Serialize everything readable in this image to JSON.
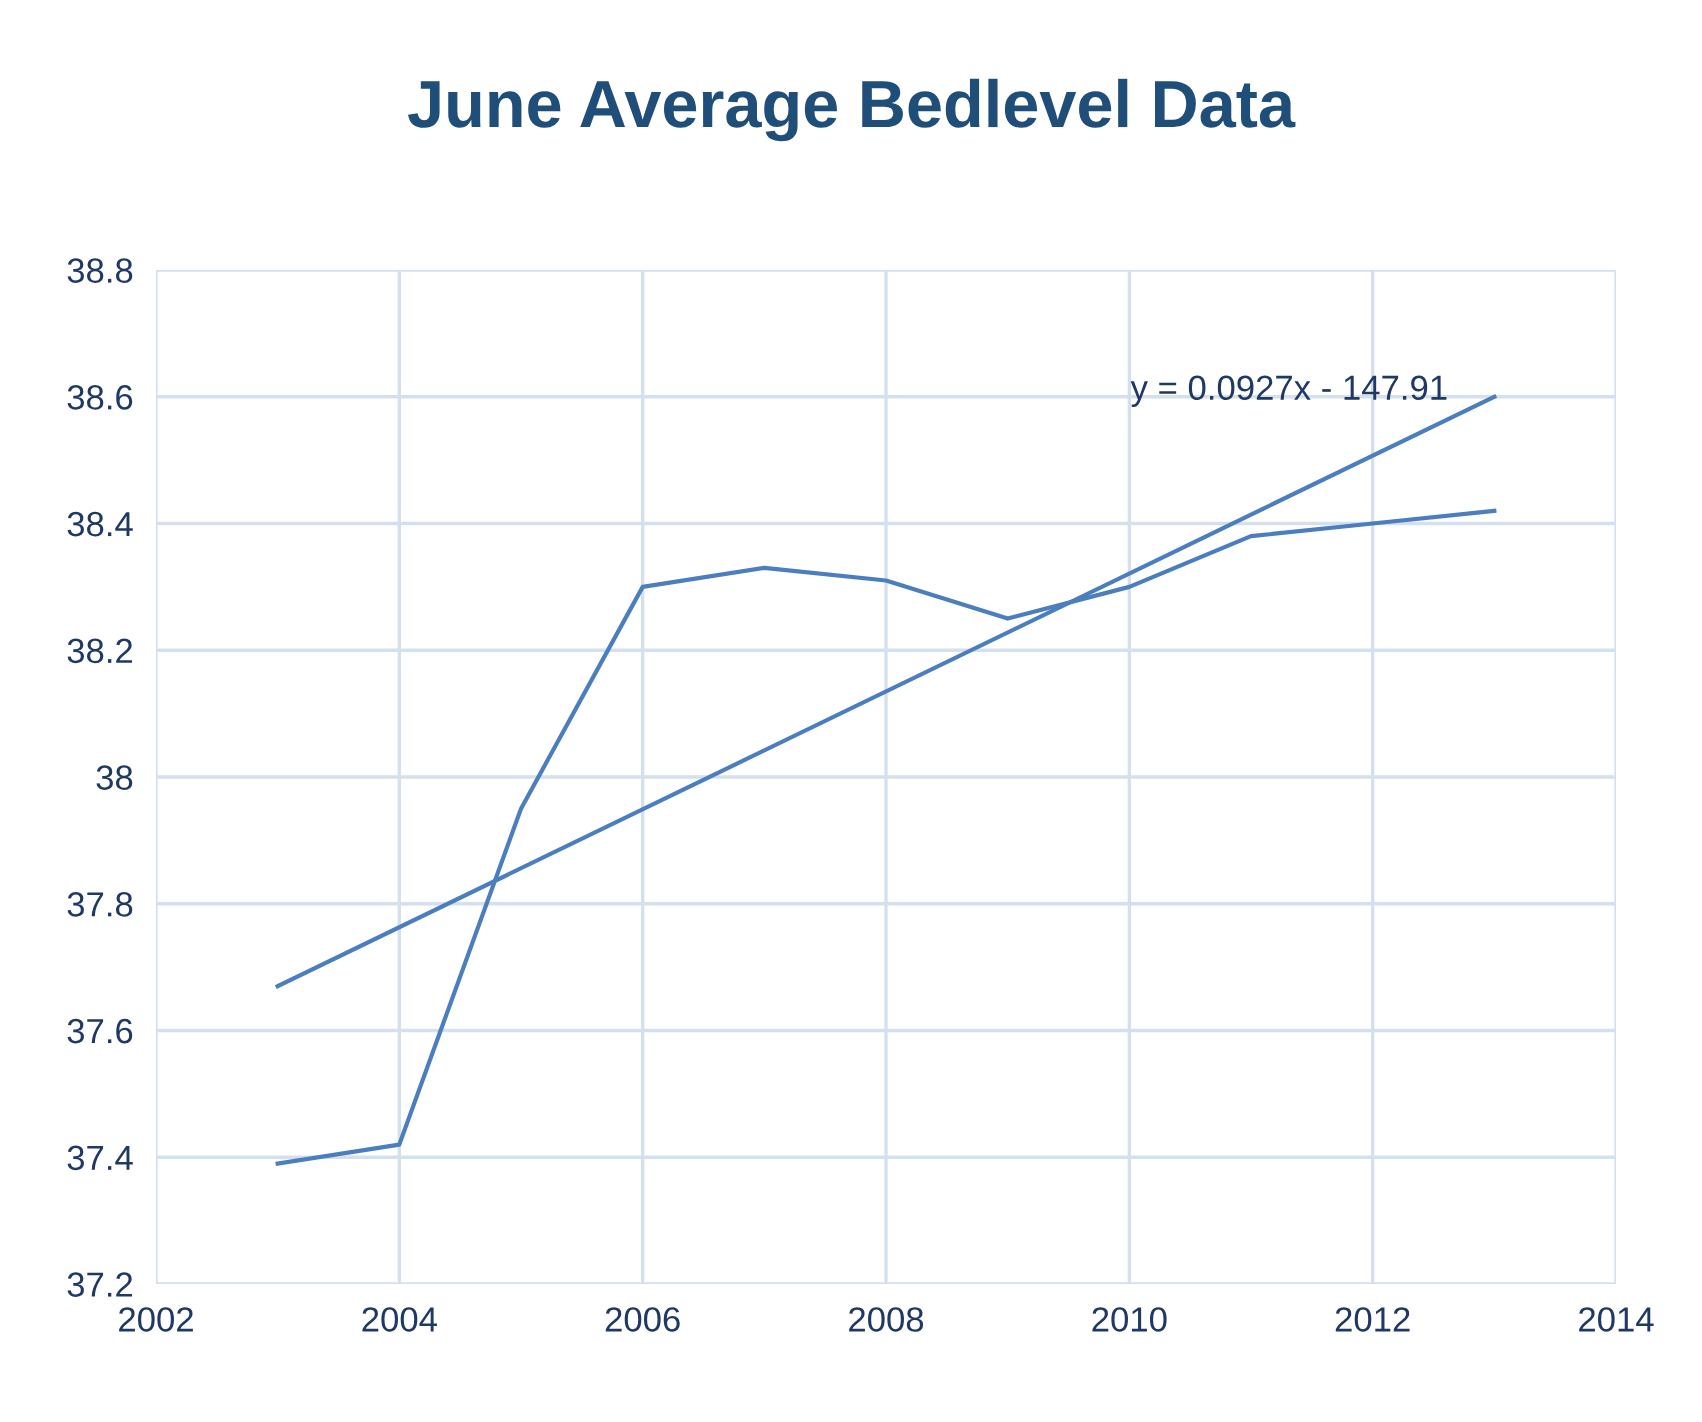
{
  "chart_data": {
    "type": "line",
    "title": "June Average Bedlevel Data",
    "x": [
      2003,
      2004,
      2005,
      2006,
      2007,
      2008,
      2009,
      2010,
      2011,
      2012,
      2013
    ],
    "series": [
      {
        "color": "#4a7ebf",
        "values": [
          37.39,
          37.42,
          37.95,
          38.3,
          38.33,
          38.31,
          38.25,
          38.3,
          38.38,
          38.4,
          38.42
        ]
      },
      {
        "type": "line",
        "color": "#4a7ebf",
        "x": [
          2003,
          2013
        ],
        "values": [
          37.67,
          38.6
        ]
      }
    ],
    "annotations": [
      "y = 0.0927x - 147.91"
    ],
    "xlim": [
      2002,
      2014
    ],
    "xticks": [
      2002,
      2004,
      2006,
      2008,
      2010,
      2012,
      2014
    ],
    "ylim": [
      37.2,
      38.8
    ],
    "yticks": [
      37.2,
      37.4,
      37.6,
      37.8,
      38,
      38.2,
      38.4,
      38.6,
      38.8
    ],
    "grid": true,
    "legend": false,
    "marker": "none"
  }
}
